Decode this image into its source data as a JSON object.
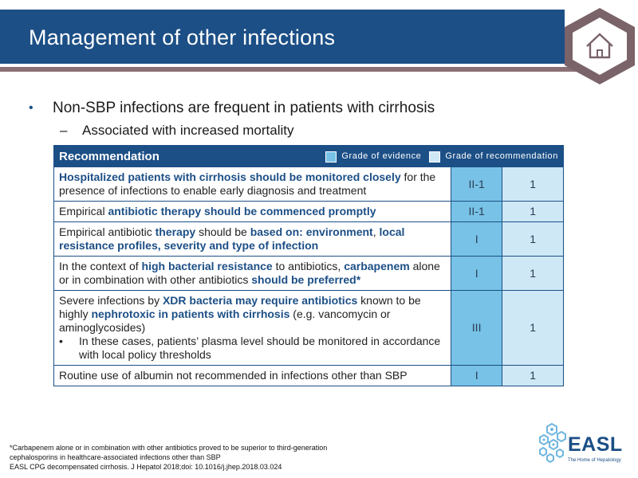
{
  "slide": {
    "title": "Management of other infections",
    "bullets": [
      {
        "text": "Non-SBP infections are frequent in patients with cirrhosis",
        "bullet": "•"
      },
      {
        "text": "Associated with increased mortality",
        "bullet": "–"
      }
    ]
  },
  "nav": {
    "home_icon": "home-icon",
    "accent": "#7a6369"
  },
  "table": {
    "header": "Recommendation",
    "legend": {
      "evidence": "Grade of evidence",
      "recommendation": "Grade of recommendation"
    },
    "rows": [
      {
        "segments": [
          "Hospitalized patients with cirrhosis should be monitored closely",
          " for the presence of infections to enable early diagnosis and treatment"
        ],
        "evidence": "II-1",
        "grade": "1"
      },
      {
        "segments": [
          "Empirical ",
          "antibiotic therapy should be commenced promptly"
        ],
        "evidence": "II-1",
        "grade": "1"
      },
      {
        "segments": [
          "Empirical antibiotic ",
          "therapy",
          " should be ",
          "based on: environment",
          ", ",
          "local resistance profiles, severity and type of infection"
        ],
        "evidence": "I",
        "grade": "1"
      },
      {
        "segments": [
          "In the context of ",
          "high bacterial resistance",
          " to antibiotics, ",
          "carbapenem",
          " alone or in combination with other antibiotics ",
          "should be preferred*"
        ],
        "evidence": "I",
        "grade": "1"
      },
      {
        "segments": [
          "Severe infections by ",
          "XDR bacteria may require antibiotics",
          " known to be highly ",
          "nephrotoxic in patients with cirrhosis",
          " (e.g. vancomycin or aminoglycosides)"
        ],
        "sub_bullet": "In these cases, patients’ plasma level should be monitored in accordance with local policy thresholds",
        "evidence": "III",
        "grade": "1"
      },
      {
        "segments": [
          "Routine use of albumin not recommended in infections other than SBP"
        ],
        "evidence": "I",
        "grade": "1"
      }
    ]
  },
  "footnote": {
    "lines": [
      "*Carbapenem alone or in combination with other antibiotics proved to be superior to third-generation",
      "cephalosporins in healthcare-associated infections other than SBP",
      "EASL CPG decompensated cirrhosis. J Hepatol 2018;doi: 10.1016/j.jhep.2018.03.024"
    ]
  },
  "logo": {
    "wordmark": "EASL",
    "tagline": "The Home of Hepatology"
  },
  "colors": {
    "primary": "#1c4f86",
    "evidence_fill": "#77c2e6",
    "recommendation_fill": "#cfe8f6",
    "title_rule": "#8a7075"
  }
}
